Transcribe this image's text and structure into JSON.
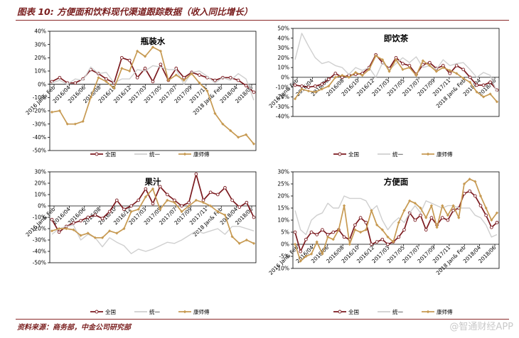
{
  "figure": {
    "title": "图表 10:  方便面和饮料现代渠道跟踪数据（收入同比增长）",
    "source": "资料来源：商务部，中金公司研究部",
    "watermark": "@智通财经APP"
  },
  "colors": {
    "quanguo": "#7b1a1f",
    "tongyi": "#cfcfcf",
    "kangshifu": "#c79a52"
  },
  "legend_names": [
    "全国",
    "统一",
    "康师傅"
  ],
  "chart_data": [
    {
      "type": "line",
      "title": "瓶装水",
      "ylim": [
        -50,
        40
      ],
      "yticks": [
        40,
        30,
        20,
        10,
        0,
        -10,
        -20,
        -30,
        -40,
        -50
      ],
      "xticklabels": [
        "2016 Jan& Feb",
        "2016/04",
        "2016/06",
        "2016/08",
        "2016/10",
        "2016/12",
        "2017/03",
        "2017/05",
        "2017/07",
        "2017/09",
        "2017/11",
        "2018 Jan& Feb",
        "2018/04",
        "2018/06"
      ],
      "series": [
        {
          "name": "全国",
          "values": [
            2,
            5,
            1,
            1,
            4,
            11,
            8,
            4,
            1,
            20,
            18,
            5,
            12,
            2,
            15,
            3,
            12,
            5,
            9,
            7,
            5,
            3,
            5,
            5,
            3,
            -1,
            -6
          ]
        },
        {
          "name": "统一",
          "values": [
            1,
            3,
            0,
            4,
            3,
            13,
            8,
            9,
            1,
            4,
            4,
            11,
            10,
            14,
            13,
            11,
            11,
            0,
            9,
            10,
            6,
            1,
            5,
            3,
            8,
            4,
            -12
          ]
        },
        {
          "name": "康师傅",
          "values": [
            -21,
            -20,
            -30,
            -30,
            -28,
            -10,
            5,
            2,
            -3,
            12,
            10,
            25,
            21,
            28,
            25,
            3,
            7,
            3,
            8,
            1,
            -5,
            -22,
            -30,
            -35,
            -40,
            -38,
            -45
          ]
        }
      ]
    },
    {
      "type": "line",
      "title": "即饮茶",
      "ylim": [
        -40,
        50
      ],
      "yticks": [
        50,
        40,
        30,
        20,
        10,
        0,
        -10,
        -20,
        -30,
        -40
      ],
      "xticklabels": [
        "2016 Jan& Feb",
        "2016/04",
        "2016/06",
        "2016/08",
        "2016/10",
        "2016/12",
        "2017/03",
        "2017/05",
        "2017/07",
        "2017/09",
        "2017/11",
        "2018 Jan& Feb",
        "2018/04",
        "2018/06"
      ],
      "series": [
        {
          "name": "全国",
          "values": [
            -8,
            -9,
            -10,
            -9,
            -7,
            -2,
            4,
            0,
            2,
            3,
            4,
            10,
            23,
            15,
            9,
            20,
            14,
            12,
            3,
            13,
            15,
            9,
            12,
            4,
            12,
            8,
            0,
            -8,
            -8,
            -5,
            -13
          ]
        },
        {
          "name": "统一",
          "values": [
            18,
            45,
            32,
            20,
            14,
            16,
            12,
            10,
            3,
            10,
            7,
            10,
            0,
            15,
            8,
            14,
            20,
            15,
            21,
            10,
            12,
            8,
            18,
            12,
            14,
            15,
            8,
            0,
            5,
            2,
            -15
          ]
        },
        {
          "name": "康师傅",
          "values": [
            -22,
            -12,
            -14,
            -15,
            -12,
            -9,
            0,
            2,
            0,
            5,
            2,
            8,
            22,
            18,
            6,
            18,
            8,
            10,
            2,
            17,
            12,
            6,
            10,
            7,
            4,
            -1,
            -5,
            -15,
            -20,
            -17,
            -25
          ]
        }
      ]
    },
    {
      "type": "line",
      "title": "果汁",
      "ylim": [
        -50,
        30
      ],
      "yticks": [
        30,
        20,
        10,
        0,
        -10,
        -20,
        -30,
        -40,
        -50
      ],
      "xticklabels": [
        "2016 Jan& Feb",
        "2016/04",
        "2016/06",
        "2016/08",
        "2016/10",
        "2016/12",
        "2017/03",
        "2017/05",
        "2017/07",
        "2017/09",
        "2017/11",
        "2018 Jan& Feb",
        "2018/04",
        "2018/06"
      ],
      "series": [
        {
          "name": "全国",
          "values": [
            -12,
            -23,
            -18,
            -15,
            -13,
            -10,
            -8,
            -11,
            -5,
            5,
            -3,
            0,
            5,
            15,
            2,
            17,
            10,
            5,
            0,
            3,
            28,
            5,
            12,
            10,
            16,
            5,
            -1,
            3,
            -10
          ]
        },
        {
          "name": "统一",
          "values": [
            -25,
            -20,
            -18,
            -17,
            -30,
            -25,
            -28,
            -36,
            -28,
            -32,
            -35,
            -42,
            -38,
            -40,
            -38,
            -35,
            -32,
            -33,
            -30,
            -26,
            -22,
            -24,
            -22,
            -20,
            -25,
            -18,
            -18,
            -20,
            -22
          ]
        },
        {
          "name": "康师傅",
          "values": [
            -22,
            -20,
            -20,
            -21,
            -26,
            -24,
            -28,
            -28,
            -22,
            -24,
            -20,
            -5,
            -3,
            8,
            15,
            -3,
            5,
            3,
            -5,
            0,
            5,
            3,
            0,
            -5,
            -8,
            -27,
            -33,
            -30,
            -33
          ]
        }
      ]
    },
    {
      "type": "line",
      "title": "方便面",
      "ylim": [
        -10,
        30
      ],
      "yticks": [
        30,
        25,
        20,
        15,
        10,
        5,
        0,
        -5,
        -10
      ],
      "xticklabels": [
        "2016 Jan& Feb",
        "2016/04",
        "2016/06",
        "2016/08",
        "2016/10",
        "2016/12",
        "2017/03",
        "2017/05",
        "2017/07",
        "2017/09",
        "2017/11",
        "2018 Jan& Feb",
        "2018/04",
        "2018/06"
      ],
      "series": [
        {
          "name": "全国",
          "values": [
            5,
            -3,
            2,
            5,
            4,
            6,
            4,
            5,
            6,
            3,
            2,
            8,
            11,
            9,
            0,
            1,
            2,
            0,
            1,
            3,
            6,
            13,
            10,
            12,
            6,
            11,
            8,
            11,
            10,
            14,
            15,
            21,
            22,
            20,
            16,
            12,
            7,
            9
          ]
        },
        {
          "name": "统一",
          "values": [
            14,
            6,
            4,
            10,
            12,
            13,
            17,
            15,
            15,
            20,
            19,
            19,
            19,
            18,
            14,
            16,
            10,
            6,
            9,
            11,
            9,
            13,
            16,
            13,
            18,
            17,
            16,
            15,
            16,
            16,
            15,
            15,
            15,
            12,
            11,
            8,
            3,
            4
          ]
        },
        {
          "name": "康师傅",
          "values": [
            0,
            -7,
            -5,
            -4,
            1,
            -4,
            3,
            2,
            6,
            16,
            0,
            6,
            5,
            6,
            14,
            8,
            6,
            3,
            1,
            9,
            14,
            18,
            17,
            15,
            11,
            16,
            7,
            16,
            12,
            16,
            11,
            25,
            27,
            26,
            20,
            15,
            10,
            13
          ]
        }
      ]
    }
  ]
}
